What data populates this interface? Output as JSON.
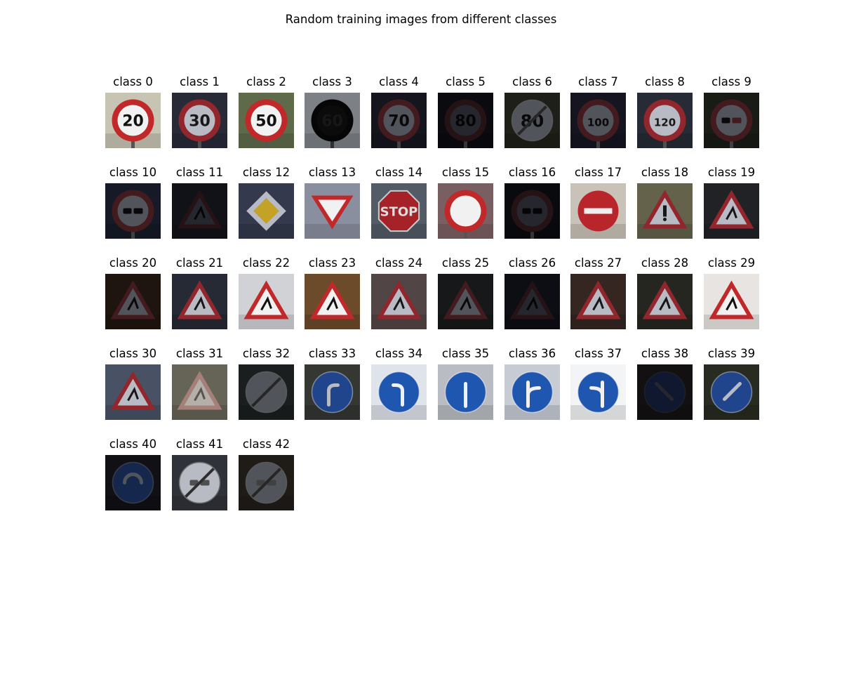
{
  "figure": {
    "title": "Random training images from different classes"
  },
  "panels": [
    {
      "label": "class 0",
      "sign": "speed-limit-20",
      "bg": "#c8c4b4",
      "style": "bright"
    },
    {
      "label": "class 1",
      "sign": "speed-limit-30",
      "bg": "#2c2e3e",
      "style": "normal"
    },
    {
      "label": "class 2",
      "sign": "speed-limit-50",
      "bg": "#5f6a4b",
      "style": "bright"
    },
    {
      "label": "class 3",
      "sign": "speed-limit-60",
      "bg": "#dfe6ef",
      "style": "silhouette"
    },
    {
      "label": "class 4",
      "sign": "speed-limit-70",
      "bg": "#1d1d28",
      "style": "dark"
    },
    {
      "label": "class 5",
      "sign": "speed-limit-80",
      "bg": "#101018",
      "style": "verydark"
    },
    {
      "label": "class 6",
      "sign": "end-speed-limit-80",
      "bg": "#2a2a22",
      "style": "dark"
    },
    {
      "label": "class 7",
      "sign": "speed-limit-100",
      "bg": "#1b1d2a",
      "style": "dark"
    },
    {
      "label": "class 8",
      "sign": "speed-limit-120",
      "bg": "#2b2f3a",
      "style": "normal"
    },
    {
      "label": "class 9",
      "sign": "no-passing",
      "bg": "#22241c",
      "style": "dark"
    },
    {
      "label": "class 10",
      "sign": "no-passing-trucks",
      "bg": "#1c2333",
      "style": "dark"
    },
    {
      "label": "class 11",
      "sign": "right-of-way",
      "bg": "#1b1d25",
      "style": "verydark"
    },
    {
      "label": "class 12",
      "sign": "priority-road",
      "bg": "#3a3f55",
      "style": "normal"
    },
    {
      "label": "class 13",
      "sign": "yield",
      "bg": "#8a8fa0",
      "style": "bright"
    },
    {
      "label": "class 14",
      "sign": "stop",
      "bg": "#5a6470",
      "style": "normal"
    },
    {
      "label": "class 15",
      "sign": "no-vehicles",
      "bg": "#7a5f62",
      "style": "bright"
    },
    {
      "label": "class 16",
      "sign": "no-trucks",
      "bg": "#0f1016",
      "style": "verydark"
    },
    {
      "label": "class 17",
      "sign": "no-entry",
      "bg": "#c9c2b8",
      "style": "bright"
    },
    {
      "label": "class 18",
      "sign": "general-caution",
      "bg": "#6d6b52",
      "style": "normal"
    },
    {
      "label": "class 19",
      "sign": "curve-left",
      "bg": "#25262a",
      "style": "normal"
    },
    {
      "label": "class 20",
      "sign": "curve-right",
      "bg": "#2a1d16",
      "style": "dark"
    },
    {
      "label": "class 21",
      "sign": "double-curve",
      "bg": "#2a2e3a",
      "style": "normal"
    },
    {
      "label": "class 22",
      "sign": "bumpy-road",
      "bg": "#d0d2d6",
      "style": "bright"
    },
    {
      "label": "class 23",
      "sign": "slippery-road",
      "bg": "#6b4b2a",
      "style": "bright"
    },
    {
      "label": "class 24",
      "sign": "road-narrows",
      "bg": "#5a4c4c",
      "style": "normal"
    },
    {
      "label": "class 25",
      "sign": "road-work",
      "bg": "#1f2022",
      "style": "dark"
    },
    {
      "label": "class 26",
      "sign": "traffic-signals",
      "bg": "#141620",
      "style": "verydark"
    },
    {
      "label": "class 27",
      "sign": "pedestrians",
      "bg": "#3a2a26",
      "style": "normal"
    },
    {
      "label": "class 28",
      "sign": "children",
      "bg": "#2a2a24",
      "style": "normal"
    },
    {
      "label": "class 29",
      "sign": "bicycles",
      "bg": "#e8e4e2",
      "style": "bright"
    },
    {
      "label": "class 30",
      "sign": "ice-snow",
      "bg": "#4f5a6e",
      "style": "normal"
    },
    {
      "label": "class 31",
      "sign": "wild-animals",
      "bg": "#7a7868",
      "style": "faded"
    },
    {
      "label": "class 32",
      "sign": "end-all-limits",
      "bg": "#23282a",
      "style": "dark"
    },
    {
      "label": "class 33",
      "sign": "turn-right-ahead",
      "bg": "#3a3c38",
      "style": "normal"
    },
    {
      "label": "class 34",
      "sign": "turn-left-ahead",
      "bg": "#dfe3ea",
      "style": "bright"
    },
    {
      "label": "class 35",
      "sign": "ahead-only",
      "bg": "#b9bcc2",
      "style": "bright"
    },
    {
      "label": "class 36",
      "sign": "straight-or-right",
      "bg": "#c6cbd4",
      "style": "bright"
    },
    {
      "label": "class 37",
      "sign": "straight-or-left",
      "bg": "#f3f4f6",
      "style": "bright"
    },
    {
      "label": "class 38",
      "sign": "keep-right",
      "bg": "#1e1a1c",
      "style": "verydark"
    },
    {
      "label": "class 39",
      "sign": "keep-left",
      "bg": "#2c2f24",
      "style": "normal"
    },
    {
      "label": "class 40",
      "sign": "roundabout",
      "bg": "#16161c",
      "style": "dark"
    },
    {
      "label": "class 41",
      "sign": "end-no-passing",
      "bg": "#35373f",
      "style": "normal"
    },
    {
      "label": "class 42",
      "sign": "end-no-passing-trucks",
      "bg": "#2a2620",
      "style": "dark"
    }
  ]
}
